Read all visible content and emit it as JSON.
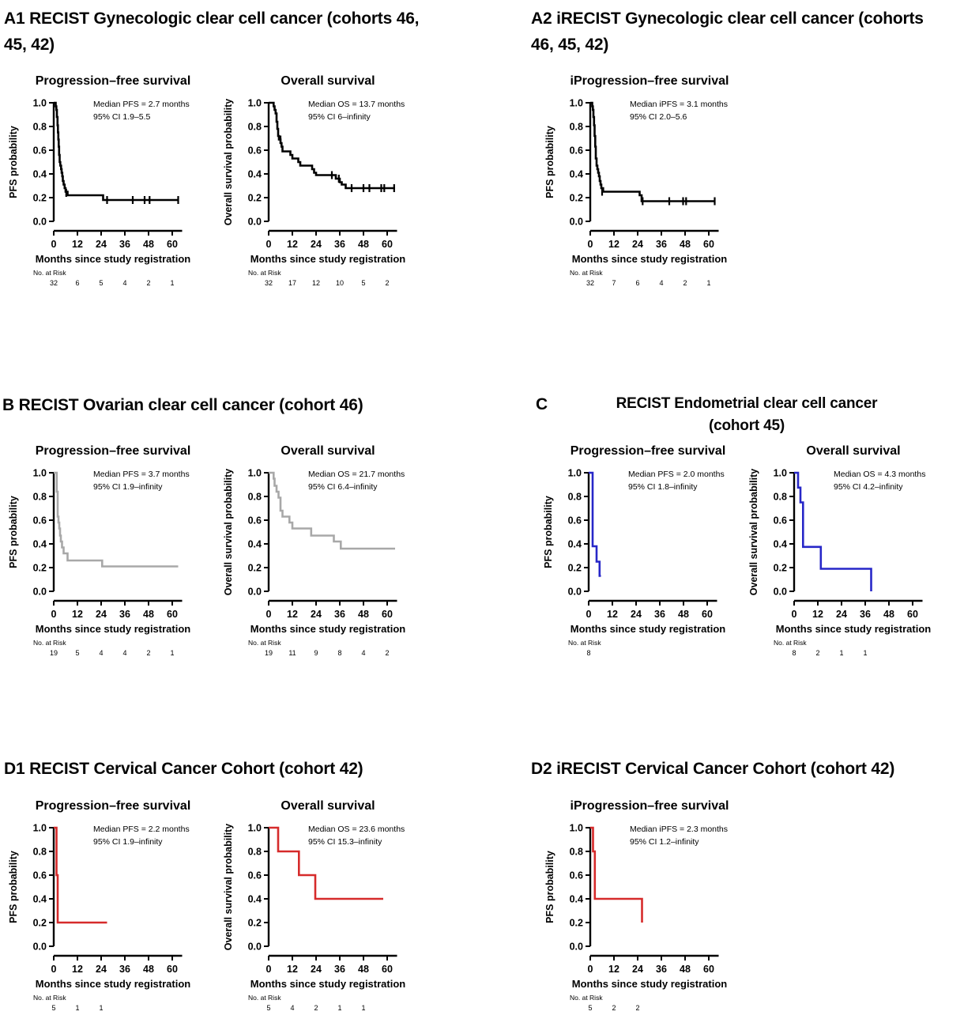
{
  "figure": {
    "background": "#ffffff",
    "text_color": "#000000",
    "axes": {
      "xlabel": "Months since study registration",
      "risk_label": "No. at Risk",
      "xticks": [
        0,
        12,
        24,
        36,
        48,
        60
      ],
      "ytick_labels": [
        "1.0",
        "0.8",
        "0.6",
        "0.4",
        "0.2",
        "0.0"
      ],
      "x_axis_end": 65,
      "ylim": [
        0,
        1
      ]
    },
    "colors": {
      "black": "#000000",
      "gray": "#a8a8a8",
      "blue": "#2727c8",
      "red": "#d62b2b"
    }
  },
  "panels": [
    {
      "id": "A1",
      "heading_lines": [
        "A1 RECIST Gynecologic clear cell cancer (cohorts 46,",
        "45, 42)"
      ]
    },
    {
      "id": "A2",
      "heading_lines": [
        "A2 iRECIST Gynecologic clear cell cancer (cohorts",
        "46, 45, 42)"
      ]
    },
    {
      "id": "B",
      "heading_lines": [
        "B RECIST Ovarian clear cell cancer (cohort 46)"
      ]
    },
    {
      "id": "C",
      "label": "C",
      "heading_lines": [
        "RECIST Endometrial clear cell cancer",
        "(cohort 45)"
      ]
    },
    {
      "id": "D1",
      "heading_lines": [
        "D1 RECIST Cervical Cancer Cohort (cohort 42)"
      ]
    },
    {
      "id": "D2",
      "heading_lines": [
        "D2 iRECIST Cervical Cancer Cohort (cohort 42)"
      ]
    }
  ],
  "chart_data": [
    {
      "type": "line",
      "subtype": "kaplan-meier-step",
      "panel": "A1",
      "title": "Progression–free survival",
      "xlabel": "Months since study registration",
      "ylabel": "PFS probability",
      "annotation": [
        "Median PFS = 2.7 months",
        "95% CI 1.9–5.5"
      ],
      "color": "#000000",
      "xlim": [
        0,
        65
      ],
      "ylim": [
        0,
        1
      ],
      "steps": [
        [
          0,
          1.0
        ],
        [
          1,
          0.97
        ],
        [
          1.3,
          0.94
        ],
        [
          1.6,
          0.88
        ],
        [
          1.9,
          0.81
        ],
        [
          2.1,
          0.75
        ],
        [
          2.3,
          0.69
        ],
        [
          2.5,
          0.63
        ],
        [
          2.7,
          0.56
        ],
        [
          3,
          0.5
        ],
        [
          3.3,
          0.47
        ],
        [
          3.7,
          0.44
        ],
        [
          4,
          0.41
        ],
        [
          4.3,
          0.38
        ],
        [
          4.6,
          0.34
        ],
        [
          5,
          0.31
        ],
        [
          5.5,
          0.28
        ],
        [
          6,
          0.25
        ],
        [
          7,
          0.22
        ],
        [
          25,
          0.18
        ],
        [
          63,
          0.18
        ]
      ],
      "censors": [
        [
          6.3,
          0.24
        ],
        [
          27,
          0.18
        ],
        [
          40,
          0.18
        ],
        [
          46,
          0.18
        ],
        [
          48.5,
          0.18
        ],
        [
          63,
          0.18
        ]
      ],
      "risk_counts": [
        "32",
        "6",
        "5",
        "4",
        "2",
        "1"
      ]
    },
    {
      "type": "line",
      "subtype": "kaplan-meier-step",
      "panel": "A1",
      "title": "Overall survival",
      "xlabel": "Months since study registration",
      "ylabel": "Overall survival probability",
      "annotation": [
        "Median OS = 13.7 months",
        "95% CI 6–infinity"
      ],
      "color": "#000000",
      "xlim": [
        0,
        65
      ],
      "ylim": [
        0,
        1
      ],
      "steps": [
        [
          0,
          1.0
        ],
        [
          2.5,
          0.97
        ],
        [
          3,
          0.94
        ],
        [
          3.5,
          0.91
        ],
        [
          4,
          0.84
        ],
        [
          4.4,
          0.78
        ],
        [
          4.8,
          0.72
        ],
        [
          5.2,
          0.69
        ],
        [
          6,
          0.66
        ],
        [
          6.5,
          0.63
        ],
        [
          7,
          0.59
        ],
        [
          11,
          0.56
        ],
        [
          12,
          0.53
        ],
        [
          15,
          0.5
        ],
        [
          16,
          0.47
        ],
        [
          22,
          0.44
        ],
        [
          23,
          0.41
        ],
        [
          24,
          0.39
        ],
        [
          34,
          0.36
        ],
        [
          36,
          0.33
        ],
        [
          37,
          0.31
        ],
        [
          39,
          0.28
        ],
        [
          64,
          0.28
        ]
      ],
      "censors": [
        [
          6,
          0.69
        ],
        [
          32,
          0.39
        ],
        [
          35.5,
          0.36
        ],
        [
          42,
          0.28
        ],
        [
          48,
          0.28
        ],
        [
          51,
          0.28
        ],
        [
          57,
          0.28
        ],
        [
          58.5,
          0.28
        ],
        [
          63.5,
          0.28
        ]
      ],
      "risk_counts": [
        "32",
        "17",
        "12",
        "10",
        "5",
        "2"
      ]
    },
    {
      "type": "line",
      "subtype": "kaplan-meier-step",
      "panel": "A2",
      "title": "iProgression–free survival",
      "xlabel": "Months since study registration",
      "ylabel": "PFS probability",
      "annotation": [
        "Median iPFS = 3.1 months",
        "95% CI 2.0–5.6"
      ],
      "color": "#000000",
      "xlim": [
        0,
        65
      ],
      "ylim": [
        0,
        1
      ],
      "steps": [
        [
          0,
          1.0
        ],
        [
          1,
          0.97
        ],
        [
          1.3,
          0.94
        ],
        [
          1.6,
          0.88
        ],
        [
          1.9,
          0.81
        ],
        [
          2.2,
          0.72
        ],
        [
          2.5,
          0.63
        ],
        [
          2.8,
          0.53
        ],
        [
          3.2,
          0.47
        ],
        [
          3.6,
          0.44
        ],
        [
          4,
          0.41
        ],
        [
          4.4,
          0.38
        ],
        [
          4.8,
          0.34
        ],
        [
          5.2,
          0.31
        ],
        [
          5.6,
          0.28
        ],
        [
          6.5,
          0.25
        ],
        [
          25,
          0.22
        ],
        [
          26,
          0.17
        ],
        [
          63,
          0.17
        ]
      ],
      "censors": [
        [
          6,
          0.25
        ],
        [
          26.5,
          0.17
        ],
        [
          40,
          0.17
        ],
        [
          47,
          0.17
        ],
        [
          48.5,
          0.17
        ],
        [
          63,
          0.17
        ]
      ],
      "risk_counts": [
        "32",
        "7",
        "6",
        "4",
        "2",
        "1"
      ]
    },
    {
      "type": "line",
      "subtype": "kaplan-meier-step",
      "panel": "B",
      "title": "Progression–free survival",
      "xlabel": "Months since study registration",
      "ylabel": "PFS probability",
      "annotation": [
        "Median PFS = 3.7 months",
        "95% CI 1.9–infinity"
      ],
      "color": "#a8a8a8",
      "xlim": [
        0,
        65
      ],
      "ylim": [
        0,
        1
      ],
      "steps": [
        [
          0,
          1.0
        ],
        [
          1.5,
          0.84
        ],
        [
          2,
          0.63
        ],
        [
          2.4,
          0.58
        ],
        [
          2.8,
          0.53
        ],
        [
          3.2,
          0.47
        ],
        [
          3.6,
          0.42
        ],
        [
          4.2,
          0.37
        ],
        [
          5,
          0.32
        ],
        [
          7,
          0.26
        ],
        [
          24.5,
          0.21
        ],
        [
          63,
          0.21
        ]
      ],
      "censors": [],
      "risk_counts": [
        "19",
        "5",
        "4",
        "4",
        "2",
        "1"
      ]
    },
    {
      "type": "line",
      "subtype": "kaplan-meier-step",
      "panel": "B",
      "title": "Overall survival",
      "xlabel": "Months since study registration",
      "ylabel": "Overall survival probability",
      "annotation": [
        "Median OS = 21.7 months",
        "95% CI 6.4–infinity"
      ],
      "color": "#a8a8a8",
      "xlim": [
        0,
        65
      ],
      "ylim": [
        0,
        1
      ],
      "steps": [
        [
          0,
          1.0
        ],
        [
          2.5,
          0.95
        ],
        [
          3,
          0.89
        ],
        [
          4,
          0.84
        ],
        [
          5,
          0.79
        ],
        [
          6,
          0.68
        ],
        [
          7,
          0.63
        ],
        [
          10.5,
          0.58
        ],
        [
          12,
          0.53
        ],
        [
          21.5,
          0.47
        ],
        [
          33,
          0.42
        ],
        [
          36.5,
          0.36
        ],
        [
          64,
          0.36
        ]
      ],
      "censors": [],
      "risk_counts": [
        "19",
        "11",
        "9",
        "8",
        "4",
        "2"
      ]
    },
    {
      "type": "line",
      "subtype": "kaplan-meier-step",
      "panel": "C",
      "title": "Progression–free survival",
      "xlabel": "Months since study registration",
      "ylabel": "PFS probability",
      "annotation": [
        "Median PFS = 2.0 months",
        "95% CI 1.8–infinity"
      ],
      "color": "#2727c8",
      "xlim": [
        0,
        65
      ],
      "ylim": [
        0,
        1
      ],
      "steps": [
        [
          0,
          1.0
        ],
        [
          2,
          0.38
        ],
        [
          4,
          0.25
        ],
        [
          5.5,
          0.13
        ],
        [
          6.2,
          0.13
        ]
      ],
      "censors": [],
      "risk_counts": [
        "8",
        "",
        "",
        "",
        "",
        ""
      ]
    },
    {
      "type": "line",
      "subtype": "kaplan-meier-step",
      "panel": "C",
      "title": "Overall survival",
      "xlabel": "Months since study registration",
      "ylabel": "Overall survival probability",
      "annotation": [
        "Median OS = 4.3 months",
        "95% CI 4.2–infinity"
      ],
      "color": "#2727c8",
      "xlim": [
        0,
        65
      ],
      "ylim": [
        0,
        1
      ],
      "steps": [
        [
          0,
          1.0
        ],
        [
          2,
          0.875
        ],
        [
          3.2,
          0.75
        ],
        [
          4.5,
          0.375
        ],
        [
          13.5,
          0.19
        ],
        [
          39,
          0.0
        ]
      ],
      "censors": [],
      "risk_counts": [
        "8",
        "2",
        "1",
        "1",
        "",
        ""
      ]
    },
    {
      "type": "line",
      "subtype": "kaplan-meier-step",
      "panel": "D1",
      "title": "Progression–free survival",
      "xlabel": "Months since study registration",
      "ylabel": "PFS probability",
      "annotation": [
        "Median PFS = 2.2 months",
        "95% CI 1.9–infinity"
      ],
      "color": "#d62b2b",
      "xlim": [
        0,
        65
      ],
      "ylim": [
        0,
        1
      ],
      "steps": [
        [
          0,
          1.0
        ],
        [
          1.4,
          0.6
        ],
        [
          2,
          0.2
        ],
        [
          27,
          0.2
        ]
      ],
      "censors": [],
      "risk_counts": [
        "5",
        "1",
        "1",
        "",
        "",
        ""
      ]
    },
    {
      "type": "line",
      "subtype": "kaplan-meier-step",
      "panel": "D1",
      "title": "Overall survival",
      "xlabel": "Months since study registration",
      "ylabel": "Overall survival probability",
      "annotation": [
        "Median OS = 23.6 months",
        "95% CI 15.3–infinity"
      ],
      "color": "#d62b2b",
      "xlim": [
        0,
        65
      ],
      "ylim": [
        0,
        1
      ],
      "steps": [
        [
          0,
          1.0
        ],
        [
          4.8,
          0.8
        ],
        [
          15.3,
          0.6
        ],
        [
          23.6,
          0.4
        ],
        [
          58,
          0.4
        ]
      ],
      "censors": [],
      "risk_counts": [
        "5",
        "4",
        "2",
        "1",
        "1",
        ""
      ]
    },
    {
      "type": "line",
      "subtype": "kaplan-meier-step",
      "panel": "D2",
      "title": "iProgression–free survival",
      "xlabel": "Months since study registration",
      "ylabel": "PFS probability",
      "annotation": [
        "Median iPFS = 2.3 months",
        "95% CI 1.2–infinity"
      ],
      "color": "#d62b2b",
      "xlim": [
        0,
        65
      ],
      "ylim": [
        0,
        1
      ],
      "steps": [
        [
          0,
          1.0
        ],
        [
          1.4,
          0.8
        ],
        [
          2.3,
          0.4
        ],
        [
          26.2,
          0.2
        ]
      ],
      "censors": [],
      "risk_counts": [
        "5",
        "2",
        "2",
        "",
        "",
        ""
      ]
    }
  ]
}
